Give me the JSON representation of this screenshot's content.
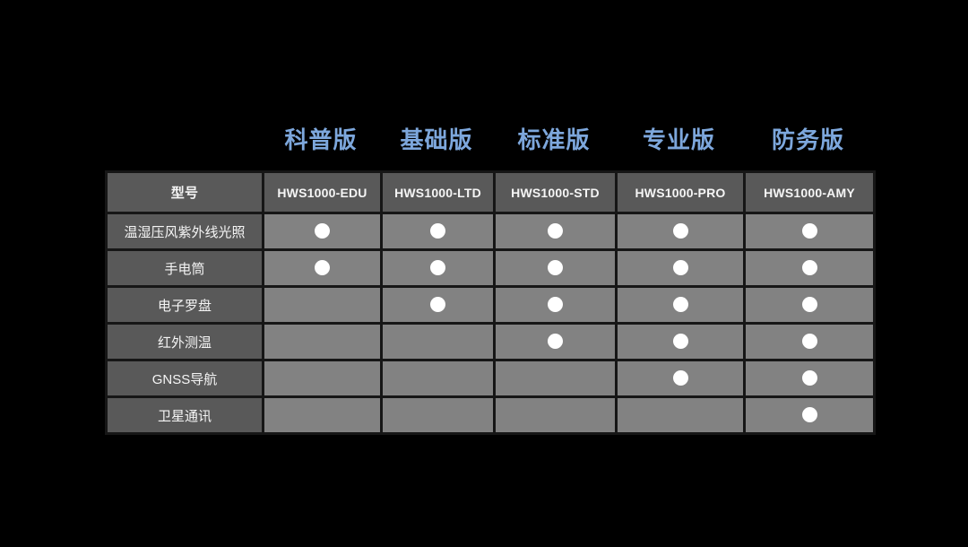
{
  "colors": {
    "bg": "#000000",
    "accent": "#7DA7DC",
    "head_bg": "#595959",
    "cell_bg": "#828282",
    "border": "#161616",
    "dot": "#ffffff",
    "text": "#f5f5f5"
  },
  "editions": [
    "科普版",
    "基础版",
    "标准版",
    "专业版",
    "防务版"
  ],
  "table": {
    "header": [
      "型号",
      "HWS1000-EDU",
      "HWS1000-LTD",
      "HWS1000-STD",
      "HWS1000-PRO",
      "HWS1000-AMY"
    ],
    "rows": [
      {
        "label": "温湿压风紫外线光照",
        "cells": [
          true,
          true,
          true,
          true,
          true
        ]
      },
      {
        "label": "手电筒",
        "cells": [
          true,
          true,
          true,
          true,
          true
        ]
      },
      {
        "label": "电子罗盘",
        "cells": [
          false,
          true,
          true,
          true,
          true
        ]
      },
      {
        "label": "红外测温",
        "cells": [
          false,
          false,
          true,
          true,
          true
        ]
      },
      {
        "label": "GNSS导航",
        "cells": [
          false,
          false,
          false,
          true,
          true
        ]
      },
      {
        "label": "卫星通讯",
        "cells": [
          false,
          false,
          false,
          false,
          true
        ]
      }
    ]
  },
  "chart_data": {
    "type": "table",
    "title": "",
    "edition_labels": [
      "科普版",
      "基础版",
      "标准版",
      "专业版",
      "防务版"
    ],
    "columns": [
      "型号",
      "HWS1000-EDU",
      "HWS1000-LTD",
      "HWS1000-STD",
      "HWS1000-PRO",
      "HWS1000-AMY"
    ],
    "rows": [
      {
        "feature": "温湿压风紫外线光照",
        "availability": [
          true,
          true,
          true,
          true,
          true
        ]
      },
      {
        "feature": "手电筒",
        "availability": [
          true,
          true,
          true,
          true,
          true
        ]
      },
      {
        "feature": "电子罗盘",
        "availability": [
          false,
          true,
          true,
          true,
          true
        ]
      },
      {
        "feature": "红外测温",
        "availability": [
          false,
          false,
          true,
          true,
          true
        ]
      },
      {
        "feature": "GNSS导航",
        "availability": [
          false,
          false,
          false,
          true,
          true
        ]
      },
      {
        "feature": "卫星通讯",
        "availability": [
          false,
          false,
          false,
          false,
          true
        ]
      }
    ],
    "marker": "●",
    "layout_hints": {
      "background": "black",
      "header_text_color": "light-blue",
      "grid": "on"
    }
  }
}
